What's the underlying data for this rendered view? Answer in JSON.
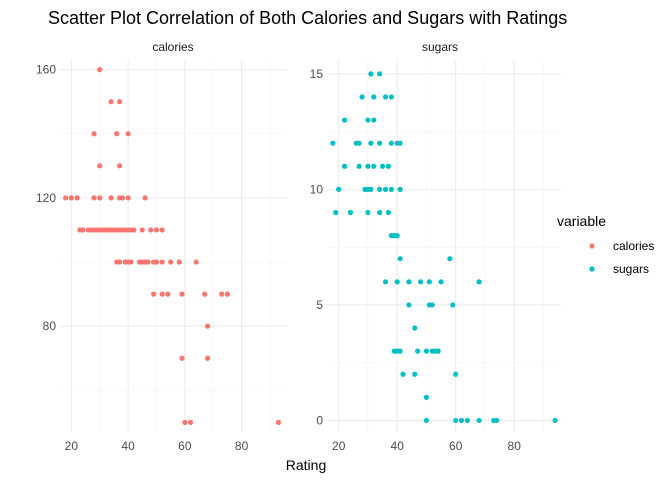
{
  "chart_data": {
    "type": "scatter",
    "title": "Scatter Plot Correlation of Both Calories and Sugars with Ratings",
    "xlabel": "Rating",
    "ylabel": "",
    "legend": {
      "title": "variable",
      "placement": "right",
      "entries": [
        {
          "name": "calories",
          "color": "#F8766D"
        },
        {
          "name": "sugars",
          "color": "#00BFC4"
        }
      ]
    },
    "grid": true,
    "x_shared": {
      "xlim": [
        16,
        96
      ],
      "ticks": [
        20,
        40,
        60,
        80
      ]
    },
    "panels": [
      {
        "strip": "calories",
        "series": "calories",
        "color": "#F8766D",
        "ylim": [
          47,
          163
        ],
        "yticks": [
          80,
          120,
          160
        ],
        "points": [
          [
            18,
            120
          ],
          [
            20,
            120
          ],
          [
            22,
            120
          ],
          [
            23,
            110
          ],
          [
            24,
            110
          ],
          [
            26,
            110
          ],
          [
            27,
            110
          ],
          [
            28,
            110
          ],
          [
            29,
            110
          ],
          [
            30,
            110
          ],
          [
            31,
            110
          ],
          [
            32,
            110
          ],
          [
            33,
            110
          ],
          [
            34,
            110
          ],
          [
            35,
            110
          ],
          [
            36,
            110
          ],
          [
            37,
            110
          ],
          [
            38,
            110
          ],
          [
            39,
            110
          ],
          [
            40,
            110
          ],
          [
            41,
            110
          ],
          [
            42,
            110
          ],
          [
            45,
            110
          ],
          [
            48,
            110
          ],
          [
            50,
            110
          ],
          [
            52,
            110
          ],
          [
            28,
            140
          ],
          [
            36,
            140
          ],
          [
            40,
            140
          ],
          [
            30,
            160
          ],
          [
            34,
            150
          ],
          [
            37,
            150
          ],
          [
            30,
            130
          ],
          [
            37,
            130
          ],
          [
            28,
            120
          ],
          [
            30,
            120
          ],
          [
            34,
            120
          ],
          [
            37,
            120
          ],
          [
            38,
            120
          ],
          [
            40,
            120
          ],
          [
            46,
            120
          ],
          [
            36,
            100
          ],
          [
            37,
            100
          ],
          [
            39,
            100
          ],
          [
            40,
            100
          ],
          [
            41,
            100
          ],
          [
            44,
            100
          ],
          [
            45,
            100
          ],
          [
            46,
            100
          ],
          [
            47,
            100
          ],
          [
            49,
            100
          ],
          [
            50,
            100
          ],
          [
            52,
            100
          ],
          [
            55,
            100
          ],
          [
            58,
            100
          ],
          [
            64,
            100
          ],
          [
            49,
            90
          ],
          [
            52,
            90
          ],
          [
            54,
            90
          ],
          [
            59,
            90
          ],
          [
            67,
            90
          ],
          [
            73,
            90
          ],
          [
            75,
            90
          ],
          [
            68,
            80
          ],
          [
            59,
            70
          ],
          [
            68,
            70
          ],
          [
            60,
            50
          ],
          [
            62,
            50
          ],
          [
            93,
            50
          ]
        ]
      },
      {
        "strip": "sugars",
        "series": "sugars",
        "color": "#00BFC4",
        "ylim": [
          -0.5,
          15.6
        ],
        "yticks": [
          0,
          5,
          10,
          15
        ],
        "points": [
          [
            31,
            15
          ],
          [
            34,
            15
          ],
          [
            28,
            14
          ],
          [
            32,
            14
          ],
          [
            36,
            14
          ],
          [
            38,
            14
          ],
          [
            22,
            13
          ],
          [
            30,
            13
          ],
          [
            32,
            13
          ],
          [
            18,
            12
          ],
          [
            26,
            12
          ],
          [
            27,
            12
          ],
          [
            31,
            12
          ],
          [
            34,
            12
          ],
          [
            38,
            12
          ],
          [
            40,
            12
          ],
          [
            41,
            12
          ],
          [
            22,
            11
          ],
          [
            27,
            11
          ],
          [
            30,
            11
          ],
          [
            32,
            11
          ],
          [
            35,
            11
          ],
          [
            37,
            11
          ],
          [
            20,
            10
          ],
          [
            29,
            10
          ],
          [
            30,
            10
          ],
          [
            31,
            10
          ],
          [
            34,
            10
          ],
          [
            36,
            10
          ],
          [
            38,
            10
          ],
          [
            41,
            10
          ],
          [
            19,
            9
          ],
          [
            24,
            9
          ],
          [
            30,
            9
          ],
          [
            34,
            9
          ],
          [
            37,
            9
          ],
          [
            38,
            8
          ],
          [
            39,
            8
          ],
          [
            40,
            8
          ],
          [
            58,
            7
          ],
          [
            41,
            7
          ],
          [
            36,
            6
          ],
          [
            40,
            6
          ],
          [
            44,
            6
          ],
          [
            48,
            6
          ],
          [
            51,
            6
          ],
          [
            55,
            6
          ],
          [
            68,
            6
          ],
          [
            44,
            5
          ],
          [
            51,
            5
          ],
          [
            52,
            5
          ],
          [
            59,
            5
          ],
          [
            46,
            4
          ],
          [
            39,
            3
          ],
          [
            40,
            3
          ],
          [
            41,
            3
          ],
          [
            47,
            3
          ],
          [
            50,
            3
          ],
          [
            52,
            3
          ],
          [
            53,
            3
          ],
          [
            54,
            3
          ],
          [
            42,
            2
          ],
          [
            46,
            2
          ],
          [
            60,
            2
          ],
          [
            50,
            1
          ],
          [
            50,
            0
          ],
          [
            60,
            0
          ],
          [
            62,
            0
          ],
          [
            64,
            0
          ],
          [
            68,
            0
          ],
          [
            73,
            0
          ],
          [
            74,
            0
          ],
          [
            94,
            0
          ]
        ]
      }
    ]
  }
}
